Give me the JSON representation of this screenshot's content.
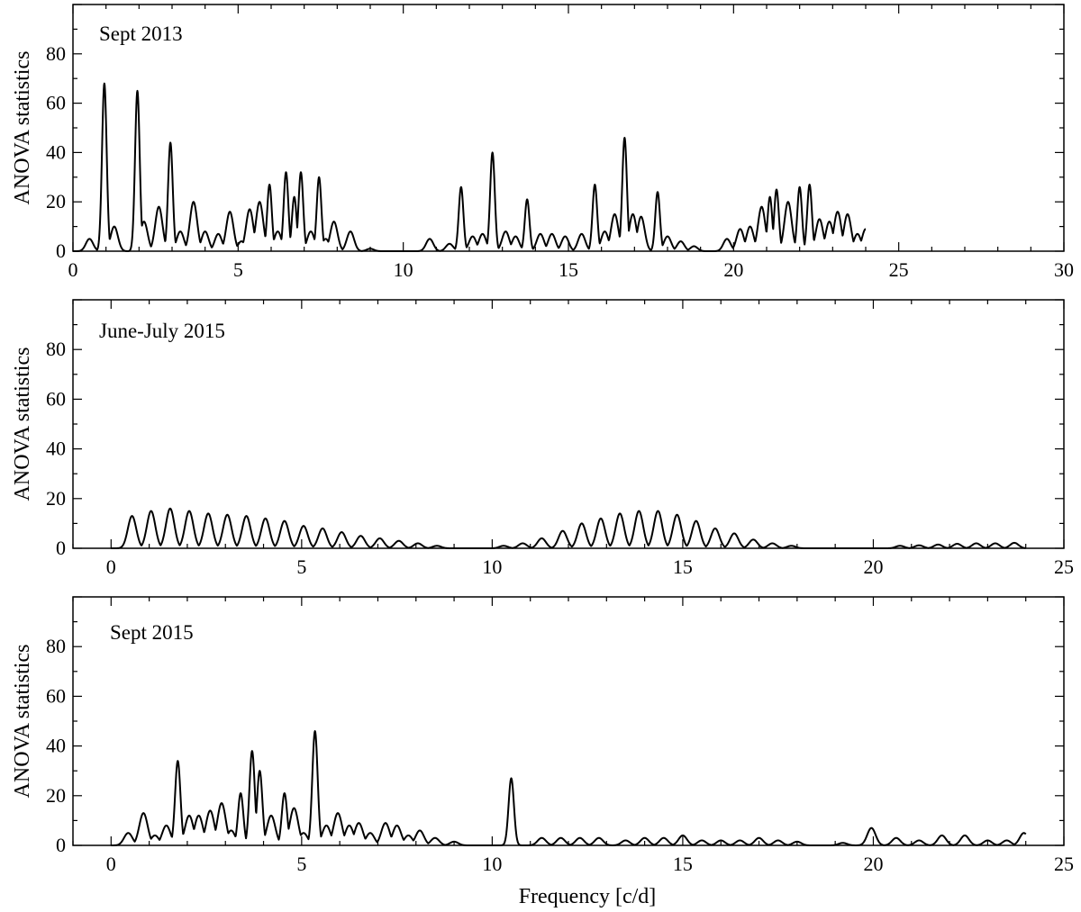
{
  "chart_data": [
    {
      "type": "line",
      "title": "Sept 2013",
      "ylabel": "ANOVA statistics",
      "xlabel": "",
      "xlim": [
        0,
        30
      ],
      "ylim": [
        0,
        100
      ],
      "xticks": [
        0,
        5,
        10,
        15,
        20,
        25,
        30
      ],
      "yticks": [
        0,
        20,
        40,
        60,
        80
      ],
      "grid": false,
      "data_end": 24,
      "peaks": [
        [
          0.5,
          5
        ],
        [
          0.95,
          68
        ],
        [
          1.25,
          10
        ],
        [
          1.95,
          65
        ],
        [
          2.15,
          12
        ],
        [
          2.6,
          18
        ],
        [
          2.95,
          44
        ],
        [
          3.25,
          8
        ],
        [
          3.65,
          20
        ],
        [
          4.0,
          8
        ],
        [
          4.4,
          7
        ],
        [
          4.75,
          16
        ],
        [
          5.1,
          4
        ],
        [
          5.35,
          17
        ],
        [
          5.65,
          20
        ],
        [
          5.95,
          27
        ],
        [
          6.2,
          8
        ],
        [
          6.45,
          32
        ],
        [
          6.7,
          22
        ],
        [
          6.9,
          32
        ],
        [
          7.2,
          8
        ],
        [
          7.45,
          30
        ],
        [
          7.65,
          5
        ],
        [
          7.9,
          12
        ],
        [
          8.4,
          8
        ],
        [
          9.0,
          1
        ],
        [
          10.8,
          5
        ],
        [
          11.4,
          3
        ],
        [
          11.75,
          26
        ],
        [
          12.1,
          6
        ],
        [
          12.4,
          7
        ],
        [
          12.7,
          40
        ],
        [
          13.1,
          8
        ],
        [
          13.4,
          6
        ],
        [
          13.75,
          21
        ],
        [
          14.15,
          7
        ],
        [
          14.5,
          7
        ],
        [
          14.9,
          6
        ],
        [
          15.4,
          7
        ],
        [
          15.8,
          27
        ],
        [
          16.1,
          8
        ],
        [
          16.4,
          15
        ],
        [
          16.7,
          46
        ],
        [
          16.95,
          15
        ],
        [
          17.2,
          14
        ],
        [
          17.7,
          24
        ],
        [
          18.0,
          6
        ],
        [
          18.4,
          4
        ],
        [
          18.8,
          2
        ],
        [
          19.8,
          5
        ],
        [
          20.2,
          9
        ],
        [
          20.5,
          10
        ],
        [
          20.85,
          18
        ],
        [
          21.1,
          22
        ],
        [
          21.3,
          25
        ],
        [
          21.65,
          20
        ],
        [
          22.0,
          26
        ],
        [
          22.3,
          27
        ],
        [
          22.6,
          13
        ],
        [
          22.9,
          12
        ],
        [
          23.15,
          16
        ],
        [
          23.45,
          15
        ],
        [
          23.75,
          7
        ],
        [
          24.0,
          9
        ]
      ]
    },
    {
      "type": "line",
      "title": "June-July 2015",
      "ylabel": "ANOVA statistics",
      "xlabel": "",
      "xlim": [
        -1,
        25
      ],
      "ylim": [
        0,
        100
      ],
      "xticks": [
        0,
        5,
        10,
        15,
        20,
        25
      ],
      "yticks": [
        0,
        20,
        40,
        60,
        80
      ],
      "grid": false,
      "data_end": 24,
      "peaks": [
        [
          0.55,
          13
        ],
        [
          1.05,
          15
        ],
        [
          1.55,
          16
        ],
        [
          2.05,
          15
        ],
        [
          2.55,
          14
        ],
        [
          3.05,
          13.5
        ],
        [
          3.55,
          13
        ],
        [
          4.05,
          12
        ],
        [
          4.55,
          11
        ],
        [
          5.05,
          9
        ],
        [
          5.55,
          8
        ],
        [
          6.05,
          6.5
        ],
        [
          6.55,
          5
        ],
        [
          7.05,
          4
        ],
        [
          7.55,
          3
        ],
        [
          8.05,
          2
        ],
        [
          8.55,
          1
        ],
        [
          10.3,
          1
        ],
        [
          10.8,
          2
        ],
        [
          11.3,
          4
        ],
        [
          11.85,
          7
        ],
        [
          12.35,
          10
        ],
        [
          12.85,
          12
        ],
        [
          13.35,
          14
        ],
        [
          13.85,
          15
        ],
        [
          14.35,
          15
        ],
        [
          14.85,
          13.5
        ],
        [
          15.35,
          11
        ],
        [
          15.85,
          8
        ],
        [
          16.35,
          6
        ],
        [
          16.85,
          3.5
        ],
        [
          17.35,
          2
        ],
        [
          17.85,
          1
        ],
        [
          20.7,
          1
        ],
        [
          21.2,
          1.2
        ],
        [
          21.7,
          1.5
        ],
        [
          22.2,
          1.8
        ],
        [
          22.7,
          2
        ],
        [
          23.2,
          2
        ],
        [
          23.7,
          2.2
        ]
      ]
    },
    {
      "type": "line",
      "title": "Sept 2015",
      "ylabel": "ANOVA statistics",
      "xlabel": "Frequency [c/d]",
      "xlim": [
        -1,
        25
      ],
      "ylim": [
        0,
        100
      ],
      "xticks": [
        0,
        5,
        10,
        15,
        20,
        25
      ],
      "yticks": [
        0,
        20,
        40,
        60,
        80
      ],
      "grid": false,
      "data_end": 24,
      "peaks": [
        [
          0.45,
          5
        ],
        [
          0.85,
          13
        ],
        [
          1.15,
          4
        ],
        [
          1.45,
          8
        ],
        [
          1.75,
          34
        ],
        [
          2.05,
          12
        ],
        [
          2.3,
          12
        ],
        [
          2.6,
          14
        ],
        [
          2.9,
          17
        ],
        [
          3.15,
          6
        ],
        [
          3.4,
          21
        ],
        [
          3.7,
          38
        ],
        [
          3.9,
          30
        ],
        [
          4.2,
          12
        ],
        [
          4.55,
          21
        ],
        [
          4.8,
          15
        ],
        [
          5.05,
          5
        ],
        [
          5.35,
          46
        ],
        [
          5.65,
          8
        ],
        [
          5.95,
          13
        ],
        [
          6.25,
          8
        ],
        [
          6.5,
          9
        ],
        [
          6.8,
          5
        ],
        [
          7.2,
          9
        ],
        [
          7.5,
          8
        ],
        [
          7.8,
          4
        ],
        [
          8.1,
          6
        ],
        [
          8.5,
          3
        ],
        [
          9.0,
          1.5
        ],
        [
          10.5,
          27
        ],
        [
          11.3,
          3
        ],
        [
          11.8,
          3
        ],
        [
          12.3,
          3
        ],
        [
          12.8,
          3
        ],
        [
          13.5,
          2
        ],
        [
          14.0,
          3
        ],
        [
          14.5,
          3
        ],
        [
          15.0,
          4
        ],
        [
          15.5,
          2
        ],
        [
          16.0,
          2
        ],
        [
          16.5,
          2
        ],
        [
          17.0,
          3
        ],
        [
          17.5,
          2
        ],
        [
          18.0,
          1.5
        ],
        [
          19.2,
          1
        ],
        [
          19.95,
          7
        ],
        [
          20.6,
          3
        ],
        [
          21.2,
          2
        ],
        [
          21.8,
          4
        ],
        [
          22.4,
          4
        ],
        [
          23.0,
          2
        ],
        [
          23.5,
          2
        ],
        [
          23.95,
          5
        ]
      ]
    }
  ]
}
